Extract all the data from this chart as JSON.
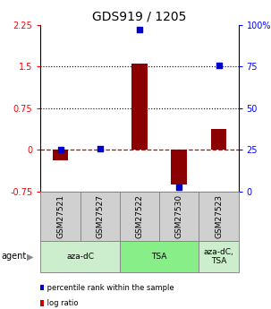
{
  "title": "GDS919 / 1205",
  "samples": [
    "GSM27521",
    "GSM27527",
    "GSM27522",
    "GSM27530",
    "GSM27523"
  ],
  "log_ratios": [
    -0.18,
    0.0,
    1.55,
    -0.62,
    0.38
  ],
  "percentile_ranks": [
    25.0,
    25.5,
    97.0,
    2.5,
    75.5
  ],
  "ylim_left": [
    -0.75,
    2.25
  ],
  "ylim_right": [
    0,
    100
  ],
  "yticks_left": [
    -0.75,
    0,
    0.75,
    1.5,
    2.25
  ],
  "yticks_left_labels": [
    "-0.75",
    "0",
    "0.75",
    "1.5",
    "2.25"
  ],
  "yticks_right": [
    0,
    25,
    50,
    75,
    100
  ],
  "yticks_right_labels": [
    "0",
    "25",
    "50",
    "75",
    "100%"
  ],
  "hlines": [
    0.75,
    1.5
  ],
  "bar_color": "#8B0000",
  "dot_color": "#0000CD",
  "zero_line_color": "#CC0000",
  "agent_groups": [
    {
      "label": "aza-dC",
      "start": 0,
      "end": 2,
      "color": "#cceecc"
    },
    {
      "label": "TSA",
      "start": 2,
      "end": 4,
      "color": "#88ee88"
    },
    {
      "label": "aza-dC,\nTSA",
      "start": 4,
      "end": 5,
      "color": "#cceecc"
    }
  ],
  "agent_label": "agent",
  "legend_items": [
    {
      "color": "#CC0000",
      "label": " log ratio"
    },
    {
      "color": "#0000CD",
      "label": " percentile rank within the sample"
    }
  ],
  "bar_width": 0.4,
  "dot_size": 22,
  "label_fontsize": 6.5,
  "tick_fontsize": 7,
  "title_fontsize": 10
}
